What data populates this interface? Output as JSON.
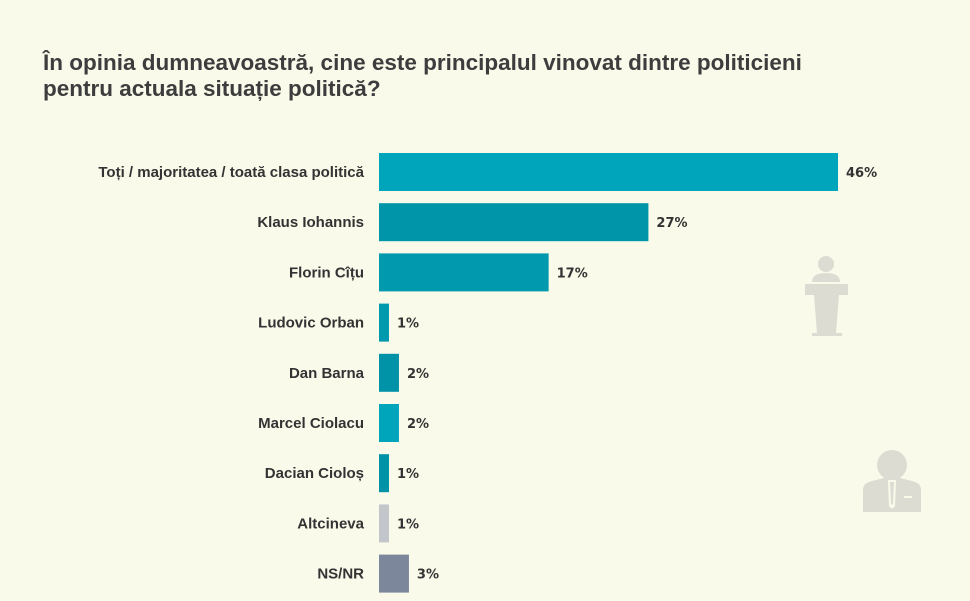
{
  "chart_data": {
    "type": "bar",
    "orientation": "horizontal",
    "title": "În opinia dumneavoastră, cine este principalul vinovat dintre politicieni pentru actuala situație politică?",
    "categories": [
      "Toți / majoritatea / toată clasa politică",
      "Klaus Iohannis",
      "Florin Cîțu",
      "Ludovic Orban",
      "Dan Barna",
      "Marcel Ciolacu",
      "Dacian Cioloș",
      "Altcineva",
      "NS/NR"
    ],
    "values": [
      46,
      27,
      17,
      1,
      2,
      2,
      1,
      1,
      3
    ],
    "value_labels": [
      "46%",
      "27%",
      "17%",
      "1%",
      "2%",
      "2%",
      "1%",
      "1%",
      "3%"
    ],
    "colors": [
      "#00a5bc",
      "#0095a8",
      "#0099ad",
      "#0099ad",
      "#0092a6",
      "#00a5bc",
      "#0092a6",
      "#c2c6ca",
      "#7c879c"
    ],
    "xlim": [
      0,
      50
    ],
    "grid": false,
    "legend": "none"
  },
  "background": "#fafaeb",
  "decor_icons": [
    "podium-speaker-icon",
    "businessman-icon"
  ],
  "icon_color": "#dcdcd2"
}
